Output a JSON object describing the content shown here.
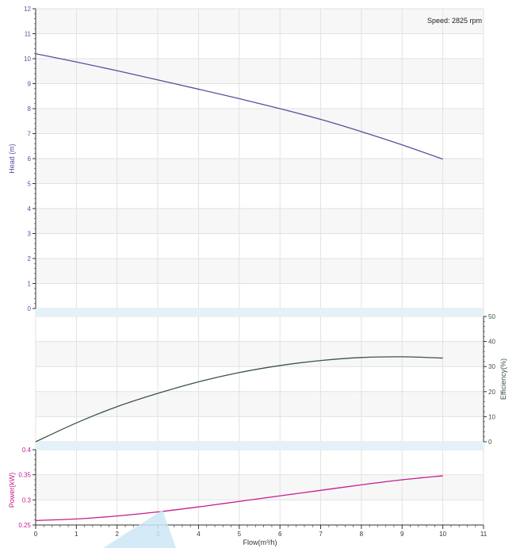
{
  "speed_label": "Speed: 2825 rpm",
  "colors": {
    "head": "#5a4e9c",
    "efficiency": "#3b5448",
    "power": "#c51d8d",
    "band": "#e4f1f9",
    "grid": "#e2e2e2",
    "stripe": "#f7f7f7",
    "cursor": "#cde7f6"
  },
  "chart_data": [
    {
      "type": "line",
      "panel": "head",
      "ylabel": "Head (m)",
      "ylim": [
        0,
        12
      ],
      "y_ticks": [
        "0",
        "1",
        "2",
        "3",
        "4",
        "5",
        "6",
        "7",
        "8",
        "9",
        "10",
        "11",
        "12"
      ],
      "series": [
        {
          "x": [
            0,
            1,
            2,
            3,
            4,
            5,
            6,
            7,
            8,
            9,
            10
          ],
          "y": [
            10.2,
            9.87,
            9.52,
            9.15,
            8.78,
            8.4,
            8.0,
            7.57,
            7.08,
            6.55,
            5.98
          ]
        }
      ]
    },
    {
      "type": "line",
      "panel": "efficiency",
      "ylabel": "Efficiency(%)",
      "ylim": [
        0,
        50
      ],
      "y_ticks": [
        "0",
        "10",
        "20",
        "30",
        "40",
        "50"
      ],
      "series": [
        {
          "x": [
            0,
            1,
            2,
            3,
            4,
            5,
            6,
            7,
            8,
            9,
            10
          ],
          "y": [
            0,
            7.5,
            14,
            19.3,
            23.9,
            27.6,
            30.4,
            32.4,
            33.6,
            33.9,
            33.4
          ]
        }
      ]
    },
    {
      "type": "line",
      "panel": "power",
      "ylabel": "Power(kW)",
      "ylim": [
        0.25,
        0.4
      ],
      "y_ticks": [
        "0.25",
        "0.3",
        "0.35",
        "0.4"
      ],
      "series": [
        {
          "x": [
            0,
            1,
            2,
            3,
            4,
            5,
            6,
            7,
            8,
            9,
            10
          ],
          "y": [
            0.259,
            0.262,
            0.268,
            0.276,
            0.286,
            0.297,
            0.308,
            0.319,
            0.33,
            0.34,
            0.348
          ]
        }
      ]
    }
  ],
  "x_axis": {
    "label": "Flow(m³/h)",
    "xlim": [
      0,
      11
    ],
    "ticks": [
      "0",
      "1",
      "2",
      "3",
      "4",
      "5",
      "6",
      "7",
      "8",
      "9",
      "10",
      "11"
    ]
  }
}
